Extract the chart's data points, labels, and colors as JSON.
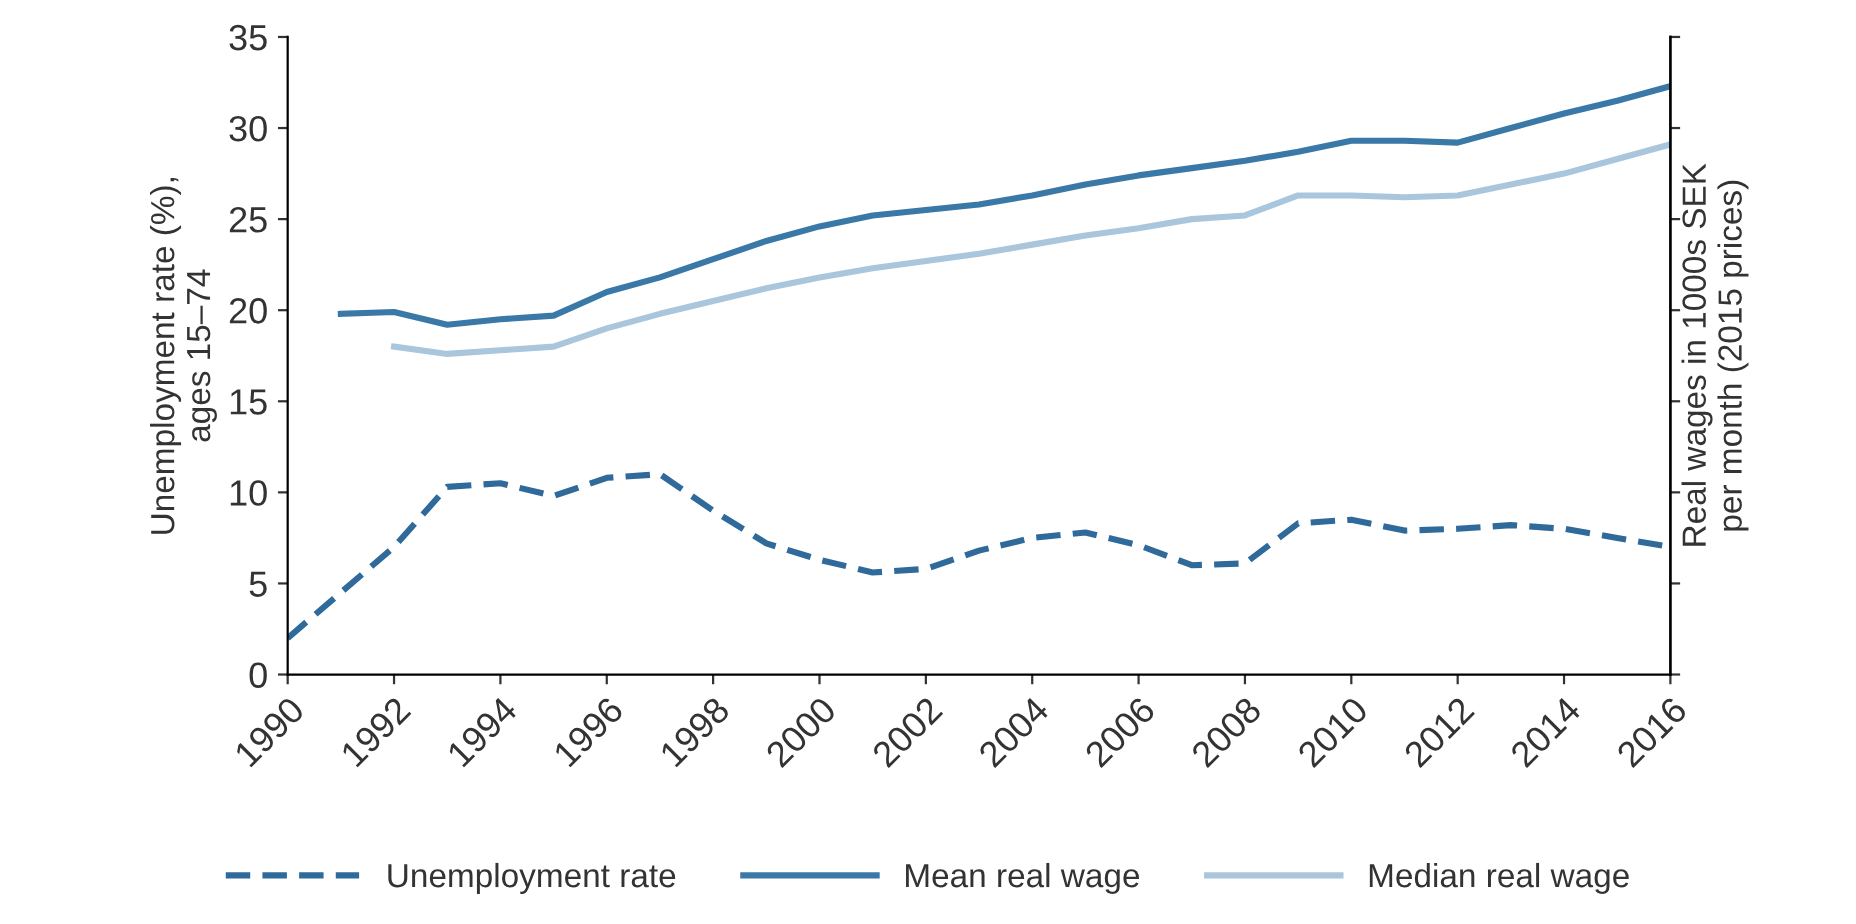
{
  "chart_data": {
    "type": "line",
    "ylabel": "Unemployment rate (%),\nages 15–74",
    "y2label": "Real wages in 1000s SEK\nper month (2015 prices)",
    "xlim": [
      1990,
      2016
    ],
    "xticks": [
      1990,
      1992,
      1994,
      1996,
      1998,
      2000,
      2002,
      2004,
      2006,
      2008,
      2010,
      2012,
      2014,
      2016
    ],
    "ylim": [
      0,
      35
    ],
    "yticks": [
      0,
      5,
      10,
      15,
      20,
      25,
      30,
      35
    ],
    "grid": false,
    "legend": "bottom",
    "marker": "none",
    "series": [
      {
        "name": "Unemployment rate",
        "color": "#2f6a9a",
        "line_style": "dashed",
        "x": [
          1990,
          1991,
          1992,
          1993,
          1994,
          1995,
          1996,
          1997,
          1998,
          1999,
          2000,
          2001,
          2002,
          2003,
          2004,
          2005,
          2006,
          2007,
          2008,
          2009,
          2010,
          2011,
          2012,
          2013,
          2014,
          2015,
          2016
        ],
        "values": [
          2.0,
          4.5,
          7.0,
          10.3,
          10.5,
          9.8,
          10.8,
          11.0,
          9.0,
          7.2,
          6.3,
          5.6,
          5.8,
          6.8,
          7.5,
          7.8,
          7.1,
          6.0,
          6.1,
          8.3,
          8.5,
          7.9,
          8.0,
          8.2,
          8.0,
          7.5,
          7.0
        ]
      },
      {
        "name": "Mean real wage",
        "color": "#3a78a8",
        "line_style": "solid",
        "x": [
          1991,
          1992,
          1993,
          1994,
          1995,
          1996,
          1997,
          1998,
          1999,
          2000,
          2001,
          2002,
          2003,
          2004,
          2005,
          2006,
          2007,
          2008,
          2009,
          2010,
          2011,
          2012,
          2013,
          2014,
          2015,
          2016
        ],
        "values": [
          19.8,
          19.9,
          19.2,
          19.5,
          19.7,
          21.0,
          21.8,
          22.8,
          23.8,
          24.6,
          25.2,
          25.5,
          25.8,
          26.3,
          26.9,
          27.4,
          27.8,
          28.2,
          28.7,
          29.3,
          29.3,
          29.2,
          30.0,
          30.8,
          31.5,
          32.3
        ]
      },
      {
        "name": "Median real wage",
        "color": "#a9c6dd",
        "line_style": "solid",
        "x": [
          1992,
          1993,
          1994,
          1995,
          1996,
          1997,
          1998,
          1999,
          2000,
          2001,
          2002,
          2003,
          2004,
          2005,
          2006,
          2007,
          2008,
          2009,
          2010,
          2011,
          2012,
          2013,
          2014,
          2015,
          2016
        ],
        "values": [
          18.0,
          17.6,
          17.8,
          18.0,
          19.0,
          19.8,
          20.5,
          21.2,
          21.8,
          22.3,
          22.7,
          23.1,
          23.6,
          24.1,
          24.5,
          25.0,
          25.2,
          26.3,
          26.3,
          26.2,
          26.3,
          26.9,
          27.5,
          28.3,
          29.1
        ]
      }
    ]
  }
}
